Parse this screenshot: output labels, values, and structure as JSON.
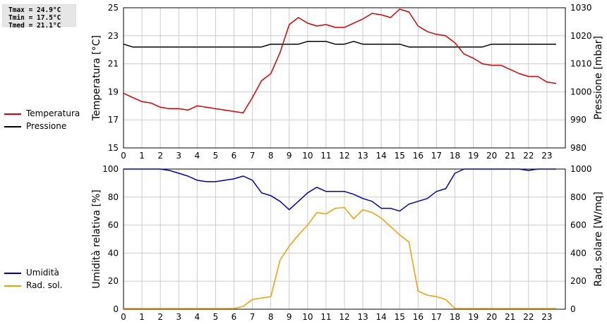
{
  "stats": {
    "tmax": "Tmax = 24.9°C",
    "tmin": "Tmin = 17.5°C",
    "tmed": "Tmed = 21.1°C"
  },
  "colors": {
    "temperature": "#dd0000",
    "pressure": "#000000",
    "humidity": "#0000bb",
    "radiation": "#f0a000",
    "grid": "#cccccc"
  },
  "chart_data": [
    {
      "type": "line",
      "grid": true,
      "legend_position": "left",
      "x_ticks": [
        "0",
        "1",
        "2",
        "3",
        "4",
        "5",
        "6",
        "7",
        "8",
        "9",
        "10",
        "11",
        "12",
        "13",
        "14",
        "15",
        "16",
        "17",
        "18",
        "19",
        "20",
        "21",
        "22",
        "23"
      ],
      "xlim": [
        0,
        24
      ],
      "ylabel": "Temperatura [°C]",
      "ylim": [
        15,
        25
      ],
      "y_ticks": [
        "15",
        "17",
        "19",
        "21",
        "23",
        "25"
      ],
      "y2label": "Pressione [mbar]",
      "y2lim": [
        980,
        1030
      ],
      "y2_ticks": [
        "980",
        "990",
        "1000",
        "1010",
        "1020",
        "1030"
      ],
      "series": [
        {
          "name": "Temperatura",
          "axis": "left",
          "x": [
            0,
            0.5,
            1,
            1.5,
            2,
            2.5,
            3,
            3.5,
            4,
            4.5,
            5,
            5.5,
            6,
            6.5,
            7,
            7.5,
            8,
            8.5,
            9,
            9.5,
            10,
            10.5,
            11,
            11.5,
            12,
            12.5,
            13,
            13.5,
            14,
            14.5,
            15,
            15.5,
            16,
            16.5,
            17,
            17.5,
            18,
            18.5,
            19,
            19.5,
            20,
            20.5,
            21,
            21.5,
            22,
            22.5,
            23,
            23.5
          ],
          "values": [
            18.9,
            18.6,
            18.3,
            18.2,
            17.9,
            17.8,
            17.8,
            17.7,
            18.0,
            17.9,
            17.8,
            17.7,
            17.6,
            17.5,
            18.6,
            19.8,
            20.3,
            21.8,
            23.8,
            24.3,
            23.9,
            23.7,
            23.8,
            23.6,
            23.6,
            23.9,
            24.2,
            24.6,
            24.5,
            24.3,
            24.9,
            24.7,
            23.7,
            23.3,
            23.1,
            23.0,
            22.5,
            21.7,
            21.4,
            21.0,
            20.9,
            20.9,
            20.6,
            20.3,
            20.1,
            20.1,
            19.7,
            19.6
          ]
        },
        {
          "name": "Pressione",
          "axis": "right",
          "x": [
            0,
            0.5,
            1,
            1.5,
            2,
            2.5,
            3,
            3.5,
            4,
            4.5,
            5,
            5.5,
            6,
            6.5,
            7,
            7.5,
            8,
            8.5,
            9,
            9.5,
            10,
            10.5,
            11,
            11.5,
            12,
            12.5,
            13,
            13.5,
            14,
            14.5,
            15,
            15.5,
            16,
            16.5,
            17,
            17.5,
            18,
            18.5,
            19,
            19.5,
            20,
            20.5,
            21,
            21.5,
            22,
            22.5,
            23,
            23.5
          ],
          "values": [
            1017,
            1016,
            1016,
            1016,
            1016,
            1016,
            1016,
            1016,
            1016,
            1016,
            1016,
            1016,
            1016,
            1016,
            1016,
            1016,
            1017,
            1017,
            1017,
            1017,
            1018,
            1018,
            1018,
            1017,
            1017,
            1018,
            1017,
            1017,
            1017,
            1017,
            1017,
            1016,
            1016,
            1016,
            1016,
            1016,
            1016,
            1016,
            1016,
            1016,
            1017,
            1017,
            1017,
            1017,
            1017,
            1017,
            1017,
            1017
          ]
        }
      ]
    },
    {
      "type": "line",
      "grid": true,
      "legend_position": "left",
      "x_ticks": [
        "0",
        "1",
        "2",
        "3",
        "4",
        "5",
        "6",
        "7",
        "8",
        "9",
        "10",
        "11",
        "12",
        "13",
        "14",
        "15",
        "16",
        "17",
        "18",
        "19",
        "20",
        "21",
        "22",
        "23"
      ],
      "xlim": [
        0,
        24
      ],
      "ylabel": "Umidità relativa [%]",
      "ylim": [
        0,
        100
      ],
      "y_ticks": [
        "0",
        "20",
        "40",
        "60",
        "80",
        "100"
      ],
      "y2label": "Rad. solare [W/mq]",
      "y2lim": [
        0,
        1000
      ],
      "y2_ticks": [
        "0",
        "200",
        "400",
        "600",
        "800",
        "1000"
      ],
      "series": [
        {
          "name": "Umidità",
          "axis": "left",
          "x": [
            0,
            0.5,
            1,
            1.5,
            2,
            2.5,
            3,
            3.5,
            4,
            4.5,
            5,
            5.5,
            6,
            6.5,
            7,
            7.5,
            8,
            8.5,
            9,
            9.5,
            10,
            10.5,
            11,
            11.5,
            12,
            12.5,
            13,
            13.5,
            14,
            14.5,
            15,
            15.5,
            16,
            16.5,
            17,
            17.5,
            18,
            18.5,
            19,
            19.5,
            20,
            20.5,
            21,
            21.5,
            22,
            22.5,
            23,
            23.5
          ],
          "values": [
            100,
            100,
            100,
            100,
            100,
            99,
            97,
            95,
            92,
            91,
            91,
            92,
            93,
            95,
            92,
            83,
            81,
            77,
            71,
            77,
            83,
            87,
            84,
            84,
            84,
            82,
            79,
            77,
            72,
            72,
            70,
            75,
            77,
            79,
            84,
            86,
            97,
            100,
            100,
            100,
            100,
            100,
            100,
            100,
            99,
            100,
            100,
            100
          ]
        },
        {
          "name": "Rad. sol.",
          "axis": "right",
          "x": [
            0,
            0.5,
            1,
            1.5,
            2,
            2.5,
            3,
            3.5,
            4,
            4.5,
            5,
            5.5,
            6,
            6.5,
            7,
            7.5,
            8,
            8.5,
            9,
            9.5,
            10,
            10.5,
            11,
            11.5,
            12,
            12.5,
            13,
            13.5,
            14,
            14.5,
            15,
            15.5,
            16,
            16.5,
            17,
            17.5,
            18,
            18.5,
            19,
            19.5,
            20,
            20.5,
            21,
            21.5,
            22,
            22.5,
            23,
            23.5
          ],
          "values": [
            5,
            5,
            5,
            5,
            5,
            5,
            5,
            5,
            5,
            5,
            5,
            5,
            5,
            20,
            70,
            80,
            90,
            350,
            450,
            530,
            600,
            690,
            680,
            720,
            725,
            645,
            710,
            690,
            650,
            590,
            530,
            480,
            130,
            100,
            90,
            70,
            5,
            5,
            5,
            5,
            5,
            5,
            5,
            5,
            5,
            5,
            5,
            5
          ]
        }
      ]
    }
  ]
}
